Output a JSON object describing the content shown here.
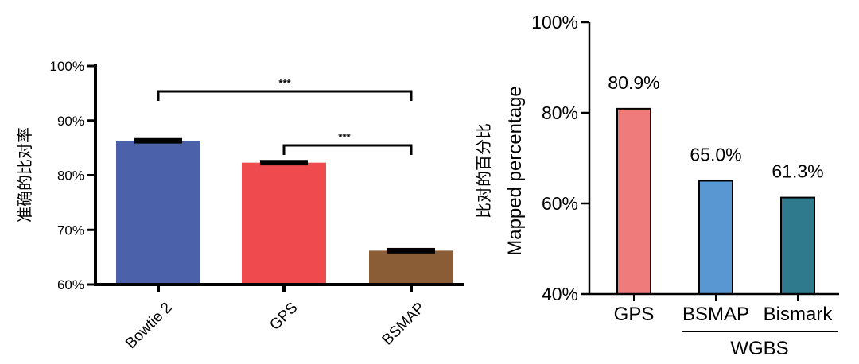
{
  "chart_data": [
    {
      "type": "bar",
      "xlabel": "",
      "ylabel": "准确的比对率",
      "categories": [
        "Bowtie 2",
        "GPS",
        "BSMAP"
      ],
      "values": [
        86.3,
        82.3,
        66.2
      ],
      "errors": [
        0.5,
        0.5,
        0.5
      ],
      "colors": [
        "#4b62ab",
        "#ef4b4f",
        "#8b5d37"
      ],
      "ylim": [
        60,
        100
      ],
      "yticks": [
        60,
        70,
        80,
        90,
        100
      ],
      "ytick_labels": [
        "60%",
        "70%",
        "80%",
        "90%",
        "100%"
      ],
      "significance": [
        {
          "from": "Bowtie 2",
          "to": "BSMAP",
          "label": "***"
        },
        {
          "from": "GPS",
          "to": "BSMAP",
          "label": "***"
        }
      ]
    },
    {
      "type": "bar",
      "xlabel": "",
      "ylabel_line1": "比对的百分比",
      "ylabel_line2": "Mapped percentage",
      "categories": [
        "GPS",
        "BSMAP",
        "Bismark"
      ],
      "values": [
        80.9,
        65.0,
        61.3
      ],
      "data_labels": [
        "80.9%",
        "65.0%",
        "61.3%"
      ],
      "colors": [
        "#f07b7b",
        "#5897d2",
        "#2f7b8d"
      ],
      "ylim": [
        40,
        100
      ],
      "yticks": [
        40,
        60,
        80,
        100
      ],
      "ytick_labels": [
        "40%",
        "60%",
        "80%",
        "100%"
      ],
      "group": {
        "label": "WGBS",
        "members": [
          "BSMAP",
          "Bismark"
        ]
      }
    }
  ]
}
